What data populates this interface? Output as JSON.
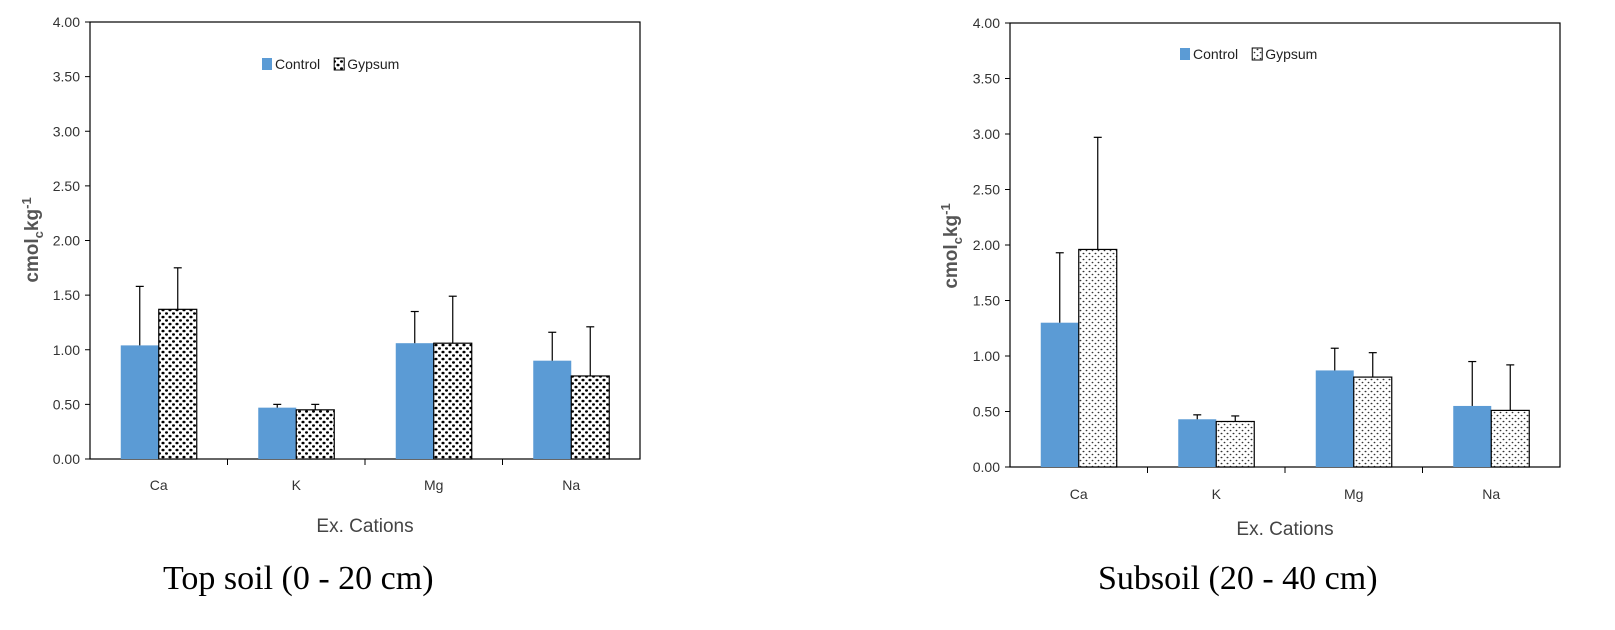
{
  "chart_data": [
    {
      "type": "bar",
      "categories": [
        "Ca",
        "K",
        "Mg",
        "Na"
      ],
      "series": [
        {
          "name": "Control",
          "values": [
            1.04,
            0.47,
            1.06,
            0.9
          ],
          "errors": [
            0.54,
            0.03,
            0.29,
            0.26
          ],
          "color": "#5b9bd5",
          "pattern": "solid"
        },
        {
          "name": "Gypsum",
          "values": [
            1.37,
            0.45,
            1.06,
            0.76
          ],
          "errors": [
            0.38,
            0.05,
            0.43,
            0.45
          ],
          "color": "#000000",
          "pattern": "dots-coarse"
        }
      ],
      "xlabel": "Ex. Cations",
      "ylabel_main": "cmol",
      "ylabel_sub": "c",
      "ylabel_unit": "kg",
      "ylabel_sup": "-1",
      "ylim": [
        0,
        4
      ],
      "yticks": [
        "0.00",
        "0.50",
        "1.00",
        "1.50",
        "2.00",
        "2.50",
        "3.00",
        "3.50",
        "4.00"
      ],
      "legend_position": "top-center",
      "caption": "Top soil (0 - 20 cm)"
    },
    {
      "type": "bar",
      "categories": [
        "Ca",
        "K",
        "Mg",
        "Na"
      ],
      "series": [
        {
          "name": "Control",
          "values": [
            1.3,
            0.43,
            0.87,
            0.55
          ],
          "errors": [
            0.63,
            0.04,
            0.2,
            0.4
          ],
          "color": "#5b9bd5",
          "pattern": "solid"
        },
        {
          "name": "Gypsum",
          "values": [
            1.96,
            0.41,
            0.81,
            0.51
          ],
          "errors": [
            1.01,
            0.05,
            0.22,
            0.41
          ],
          "color": "#000000",
          "pattern": "dots-fine"
        }
      ],
      "xlabel": "Ex. Cations",
      "ylabel_main": "cmol",
      "ylabel_sub": "c",
      "ylabel_unit": "kg",
      "ylabel_sup": "-1",
      "ylim": [
        0,
        4
      ],
      "yticks": [
        "0.00",
        "0.50",
        "1.00",
        "1.50",
        "2.00",
        "2.50",
        "3.00",
        "3.50",
        "4.00"
      ],
      "legend_position": "top-center",
      "caption": "Subsoil (20 - 40 cm)"
    }
  ]
}
